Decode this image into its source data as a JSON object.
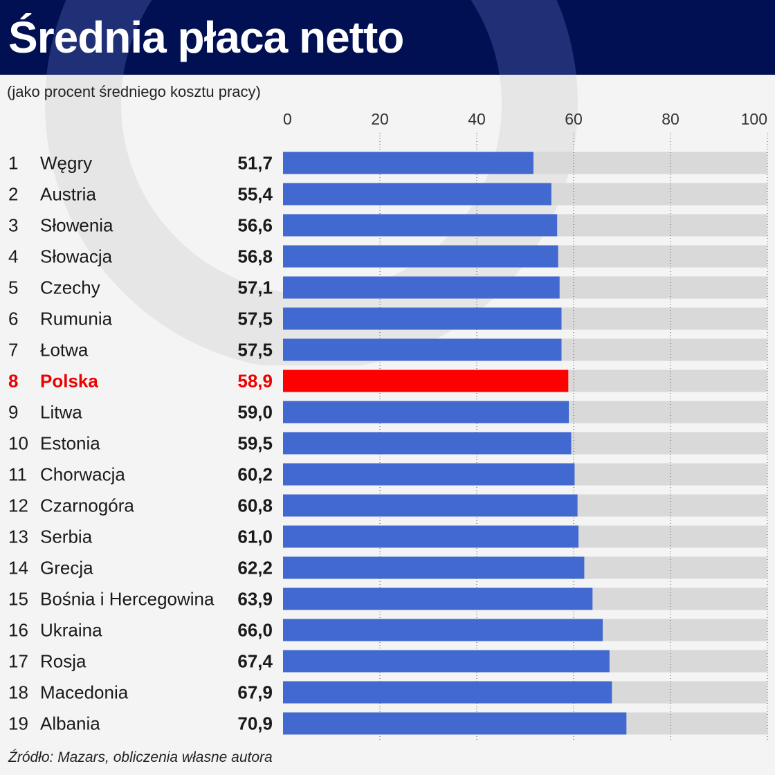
{
  "title": "Średnia płaca netto",
  "subtitle": "(jako procent średniego kosztu pracy)",
  "source": "Źródło: Mazars, obliczenia własne autora",
  "colors": {
    "header_bg": "#001052",
    "bar": "#4169d0",
    "highlight": "#ff0000",
    "track": "#d9d9d9"
  },
  "chart_data": {
    "type": "bar",
    "orientation": "horizontal",
    "xlim": [
      0,
      100
    ],
    "xticks": [
      0,
      20,
      40,
      60,
      80,
      100
    ],
    "grid": "vertical dotted",
    "highlight": "Polska",
    "ranks": [
      "1",
      "2",
      "3",
      "4",
      "5",
      "6",
      "7",
      "8",
      "9",
      "10",
      "11",
      "12",
      "13",
      "14",
      "15",
      "16",
      "17",
      "18",
      "19"
    ],
    "categories": [
      "Węgry",
      "Austria",
      "Słowenia",
      "Słowacja",
      "Czechy",
      "Rumunia",
      "Łotwa",
      "Polska",
      "Litwa",
      "Estonia",
      "Chorwacja",
      "Czarnogóra",
      "Serbia",
      "Grecja",
      "Bośnia i Hercegowina",
      "Ukraina",
      "Rosja",
      "Macedonia",
      "Albania"
    ],
    "values": [
      51.7,
      55.4,
      56.6,
      56.8,
      57.1,
      57.5,
      57.5,
      58.9,
      59.0,
      59.5,
      60.2,
      60.8,
      61.0,
      62.2,
      63.9,
      66.0,
      67.4,
      67.9,
      70.9
    ],
    "value_labels": [
      "51,7",
      "55,4",
      "56,6",
      "56,8",
      "57,1",
      "57,5",
      "57,5",
      "58,9",
      "59,0",
      "59,5",
      "60,2",
      "60,8",
      "61,0",
      "62,2",
      "63,9",
      "66,0",
      "67,4",
      "67,9",
      "70,9"
    ]
  }
}
